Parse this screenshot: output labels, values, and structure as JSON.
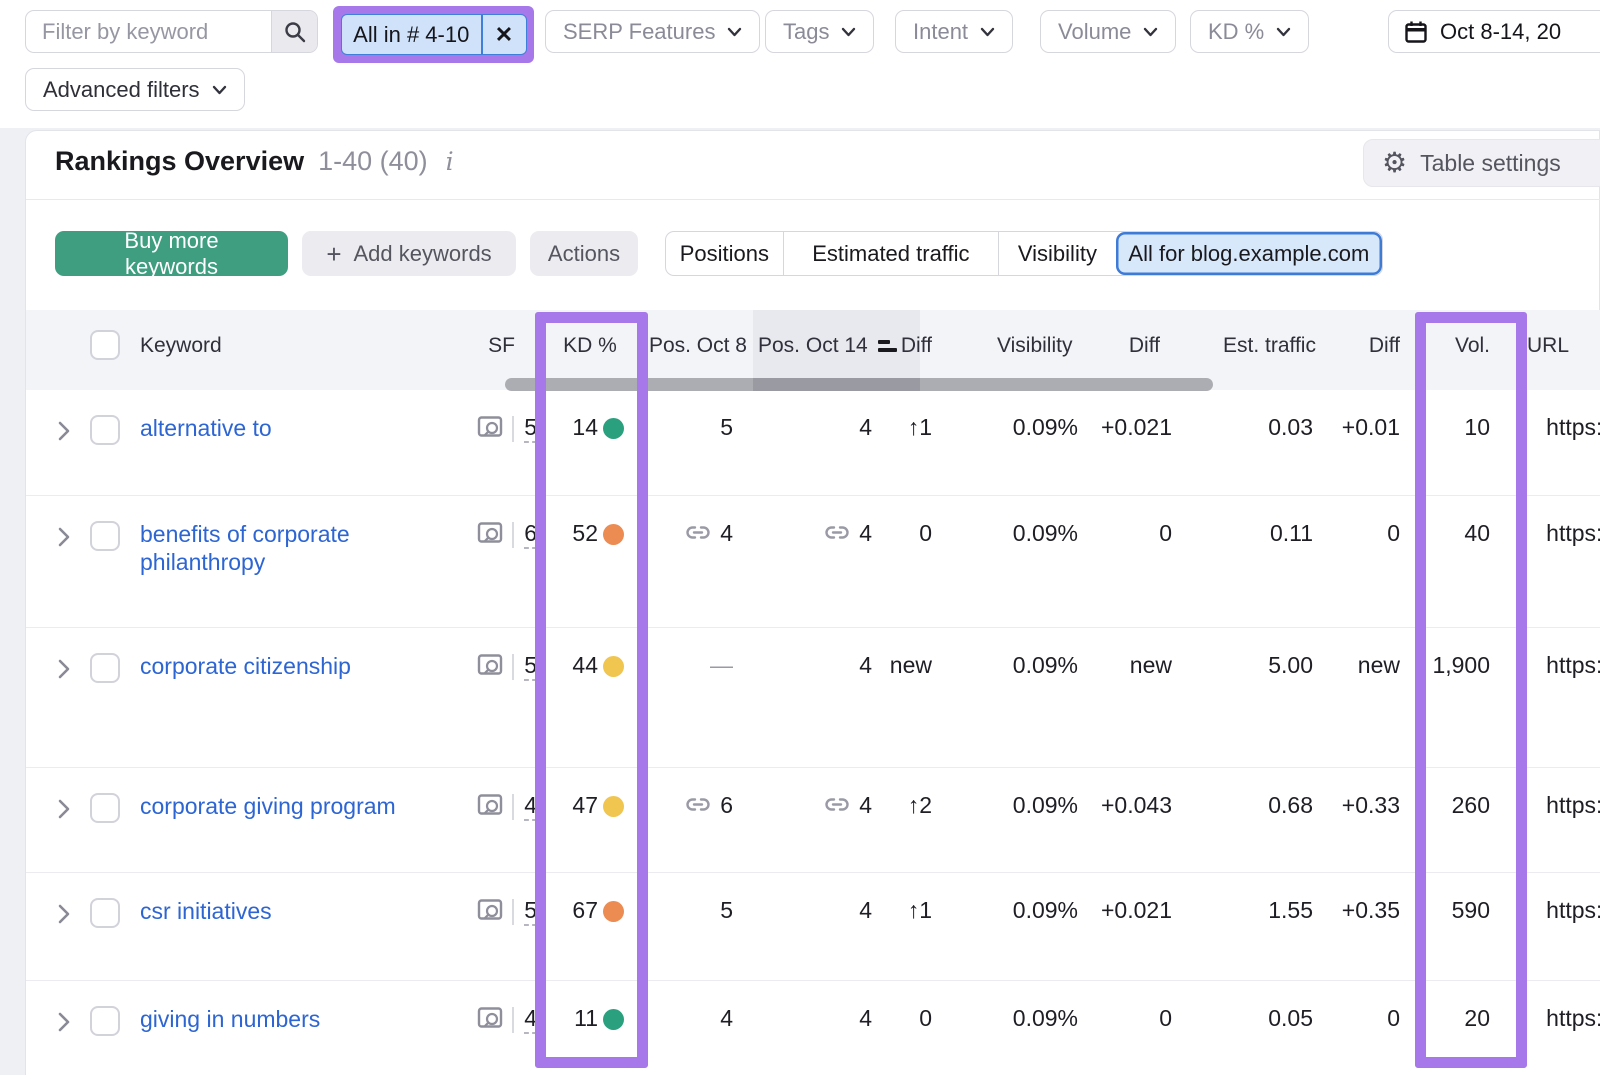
{
  "filters": {
    "keyword_placeholder": "Filter by keyword",
    "chip_label": "All in # 4-10",
    "chip_close": "✕",
    "dropdowns": [
      "SERP Features",
      "Tags",
      "Intent",
      "Volume",
      "KD %"
    ],
    "advanced_label": "Advanced filters",
    "date_label": "Oct 8-14, 20"
  },
  "overview": {
    "title": "Rankings Overview",
    "range": "1-40 (40)",
    "info_icon": "i",
    "settings_label": "Table settings",
    "gear_icon": "⚙"
  },
  "toolbar": {
    "buy_label": "Buy more keywords",
    "plus_icon": "+",
    "add_label": "Add keywords",
    "actions_label": "Actions",
    "view_tabs": [
      "Positions",
      "Estimated traffic",
      "Visibility",
      "All for blog.example.com"
    ],
    "active_tab": "All for blog.example.com"
  },
  "table": {
    "headers": {
      "keyword": "Keyword",
      "sf": "SF",
      "kd": "KD %",
      "pos_oct8": "Pos. Oct 8",
      "pos_oct14": "Pos. Oct 14",
      "diff": "Diff",
      "visibility": "Visibility",
      "diff2": "Diff",
      "est_traffic": "Est. traffic",
      "diff3": "Diff",
      "vol": "Vol.",
      "url": "URL"
    },
    "rows": [
      {
        "keyword": "alternative to",
        "sf": "5",
        "kd": "14",
        "kd_level": "green",
        "pos8": "5",
        "pos8_link": false,
        "pos14": "4",
        "pos14_link": false,
        "diff": "↑1",
        "diff_type": "up",
        "visibility": "0.09%",
        "vis_diff": "+0.021",
        "vis_diff_type": "up",
        "traffic": "0.03",
        "traffic_diff": "+0.01",
        "traffic_diff_type": "up",
        "vol": "10",
        "url": "https://b"
      },
      {
        "keyword": "benefits of corporate philanthropy",
        "sf": "6",
        "kd": "52",
        "kd_level": "orange",
        "pos8": "4",
        "pos8_link": true,
        "pos14": "4",
        "pos14_link": true,
        "diff": "0",
        "diff_type": "zero",
        "visibility": "0.09%",
        "vis_diff": "0",
        "vis_diff_type": "zero",
        "traffic": "0.11",
        "traffic_diff": "0",
        "traffic_diff_type": "zero",
        "vol": "40",
        "url": "https://b"
      },
      {
        "keyword": "corporate citizenship",
        "sf": "5",
        "kd": "44",
        "kd_level": "yellow",
        "pos8": "—",
        "pos8_link": false,
        "pos14": "4",
        "pos14_link": false,
        "diff": "new",
        "diff_type": "new",
        "visibility": "0.09%",
        "vis_diff": "new",
        "vis_diff_type": "new",
        "traffic": "5.00",
        "traffic_diff": "new",
        "traffic_diff_type": "new",
        "vol": "1,900",
        "url": "https://b"
      },
      {
        "keyword": "corporate giving program",
        "sf": "4",
        "kd": "47",
        "kd_level": "yellow",
        "pos8": "6",
        "pos8_link": true,
        "pos14": "4",
        "pos14_link": true,
        "diff": "↑2",
        "diff_type": "up",
        "visibility": "0.09%",
        "vis_diff": "+0.043",
        "vis_diff_type": "up",
        "traffic": "0.68",
        "traffic_diff": "+0.33",
        "traffic_diff_type": "up",
        "vol": "260",
        "url": "https://b"
      },
      {
        "keyword": "csr initiatives",
        "sf": "5",
        "kd": "67",
        "kd_level": "orange",
        "pos8": "5",
        "pos8_link": false,
        "pos14": "4",
        "pos14_link": false,
        "diff": "↑1",
        "diff_type": "up",
        "visibility": "0.09%",
        "vis_diff": "+0.021",
        "vis_diff_type": "up",
        "traffic": "1.55",
        "traffic_diff": "+0.35",
        "traffic_diff_type": "up",
        "vol": "590",
        "url": "https://b"
      },
      {
        "keyword": "giving in numbers",
        "sf": "4",
        "kd": "11",
        "kd_level": "green",
        "pos8": "4",
        "pos8_link": false,
        "pos14": "4",
        "pos14_link": false,
        "diff": "0",
        "diff_type": "zero",
        "visibility": "0.09%",
        "vis_diff": "0",
        "vis_diff_type": "zero",
        "traffic": "0.05",
        "traffic_diff": "0",
        "traffic_diff_type": "zero",
        "vol": "20",
        "url": "https://b"
      }
    ]
  },
  "colors": {
    "highlight_purple": "#a678ea",
    "positive_green": "#1b7a60",
    "link_blue": "#2d65d3",
    "kd_green": "#2ba07e",
    "kd_yellow": "#f0c550",
    "kd_orange": "#ec8b52",
    "buy_button_green": "#3f9e80",
    "selected_tab_blue": "#d8e8fb"
  }
}
